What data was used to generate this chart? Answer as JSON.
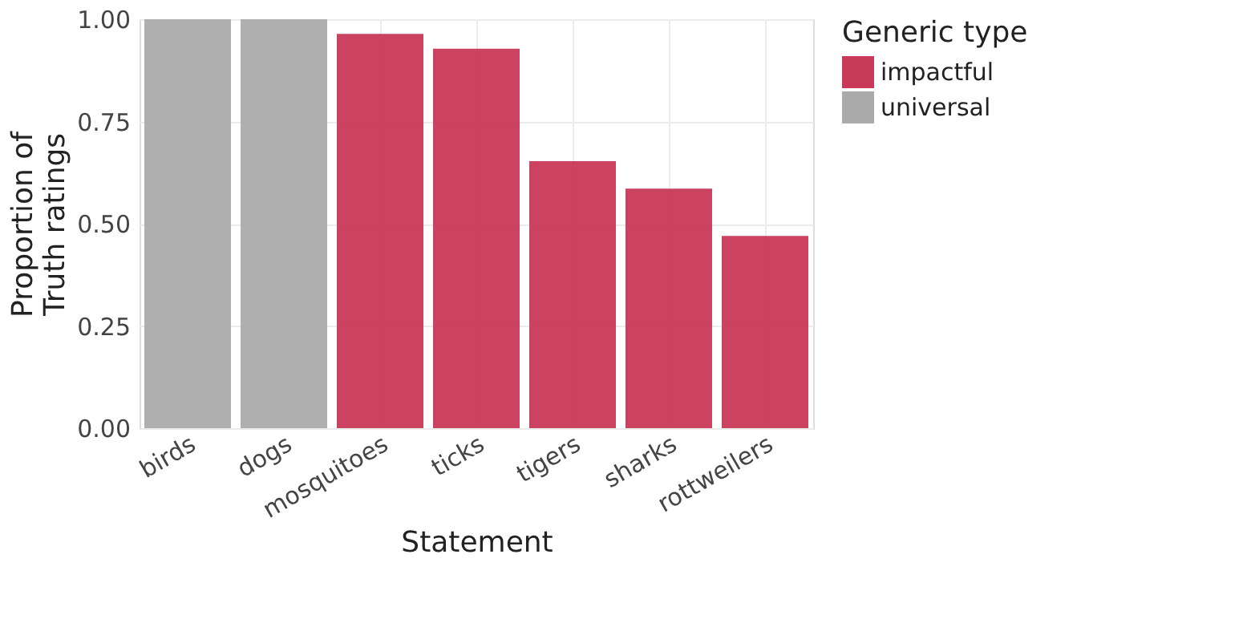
{
  "chart_data": {
    "type": "bar",
    "xlabel": "Statement",
    "ylabel": "Proportion of\nTruth ratings",
    "legend_title": "Generic type",
    "categories": [
      "birds",
      "dogs",
      "mosquitoes",
      "ticks",
      "tigers",
      "sharks",
      "rottweilers"
    ],
    "series": [
      {
        "name": "impactful",
        "color": "#c9395a",
        "values": [
          null,
          null,
          0.964,
          0.928,
          0.653,
          0.586,
          0.47
        ]
      },
      {
        "name": "universal",
        "color": "#ababab",
        "values": [
          1.0,
          1.0,
          null,
          null,
          null,
          null,
          null
        ]
      }
    ],
    "ylim": [
      0,
      1.0
    ],
    "yticks": [
      {
        "value": 0,
        "label": "0.00"
      },
      {
        "value": 0.25,
        "label": "0.25"
      },
      {
        "value": 0.5,
        "label": "0.50"
      },
      {
        "value": 0.75,
        "label": "0.75"
      },
      {
        "value": 1.0,
        "label": "1.00"
      }
    ],
    "grid": true,
    "legend": "right"
  }
}
